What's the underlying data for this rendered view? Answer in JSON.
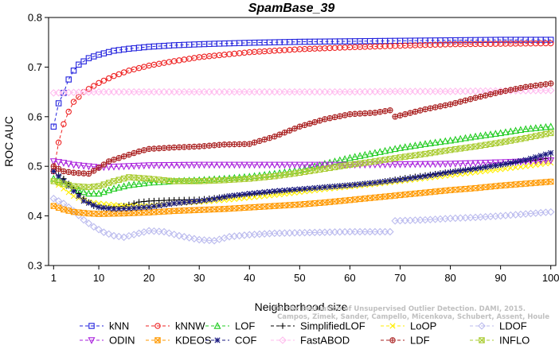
{
  "chart_data": {
    "type": "line",
    "title": "SpamBase_39",
    "xlabel": "Neighborhood size",
    "ylabel": "ROC AUC",
    "xlim": [
      0,
      101
    ],
    "ylim": [
      0.3,
      0.8
    ],
    "x_ticks": [
      1,
      10,
      20,
      30,
      40,
      50,
      60,
      70,
      80,
      90,
      100
    ],
    "y_ticks": [
      0.3,
      0.4,
      0.5,
      0.6,
      0.7,
      0.8
    ],
    "watermark": [
      "Campos, Zimek, Sander, Campello, Micenkova, Schubert, Assent, Houle",
      "On the Evaluation of Unsupervised Outlier Detection. DAMI, 2015."
    ],
    "series": [
      {
        "name": "kNN",
        "color": "#2222dd",
        "marker": "square",
        "dash": "4,3",
        "points": [
          [
            1,
            0.58
          ],
          [
            2,
            0.627
          ],
          [
            3,
            0.648
          ],
          [
            4,
            0.675
          ],
          [
            5,
            0.693
          ],
          [
            6,
            0.705
          ],
          [
            8,
            0.718
          ],
          [
            10,
            0.725
          ],
          [
            13,
            0.733
          ],
          [
            16,
            0.737
          ],
          [
            20,
            0.741
          ],
          [
            25,
            0.744
          ],
          [
            30,
            0.746
          ],
          [
            33,
            0.747
          ],
          [
            40,
            0.749
          ],
          [
            50,
            0.751
          ],
          [
            60,
            0.752
          ],
          [
            70,
            0.753
          ],
          [
            80,
            0.754
          ],
          [
            90,
            0.755
          ],
          [
            100,
            0.755
          ]
        ]
      },
      {
        "name": "kNNW",
        "color": "#ee2222",
        "marker": "circle",
        "dash": "4,3",
        "points": [
          [
            1,
            0.49
          ],
          [
            2,
            0.548
          ],
          [
            3,
            0.585
          ],
          [
            4,
            0.61
          ],
          [
            5,
            0.63
          ],
          [
            7,
            0.65
          ],
          [
            10,
            0.668
          ],
          [
            13,
            0.682
          ],
          [
            16,
            0.693
          ],
          [
            20,
            0.703
          ],
          [
            25,
            0.712
          ],
          [
            30,
            0.72
          ],
          [
            35,
            0.725
          ],
          [
            40,
            0.73
          ],
          [
            50,
            0.736
          ],
          [
            60,
            0.74
          ],
          [
            70,
            0.743
          ],
          [
            80,
            0.746
          ],
          [
            90,
            0.747
          ],
          [
            100,
            0.748
          ]
        ]
      },
      {
        "name": "LOF",
        "color": "#22cc22",
        "marker": "triangle-up",
        "dash": "4,3",
        "points": [
          [
            1,
            0.475
          ],
          [
            3,
            0.47
          ],
          [
            5,
            0.455
          ],
          [
            8,
            0.445
          ],
          [
            10,
            0.445
          ],
          [
            13,
            0.455
          ],
          [
            16,
            0.462
          ],
          [
            20,
            0.467
          ],
          [
            25,
            0.47
          ],
          [
            30,
            0.472
          ],
          [
            35,
            0.475
          ],
          [
            40,
            0.479
          ],
          [
            45,
            0.485
          ],
          [
            50,
            0.492
          ],
          [
            55,
            0.505
          ],
          [
            60,
            0.517
          ],
          [
            65,
            0.527
          ],
          [
            70,
            0.537
          ],
          [
            75,
            0.545
          ],
          [
            80,
            0.552
          ],
          [
            85,
            0.56
          ],
          [
            90,
            0.567
          ],
          [
            95,
            0.575
          ],
          [
            100,
            0.58
          ]
        ]
      },
      {
        "name": "SimplifiedLOF",
        "color": "#000000",
        "marker": "plus",
        "dash": "4,3",
        "points": [
          [
            1,
            0.49
          ],
          [
            3,
            0.475
          ],
          [
            5,
            0.455
          ],
          [
            7,
            0.435
          ],
          [
            9,
            0.42
          ],
          [
            11,
            0.415
          ],
          [
            13,
            0.418
          ],
          [
            15,
            0.42
          ],
          [
            18,
            0.428
          ],
          [
            20,
            0.43
          ],
          [
            25,
            0.432
          ],
          [
            30,
            0.433
          ],
          [
            33,
            0.436
          ],
          [
            36,
            0.44
          ],
          [
            40,
            0.443
          ],
          [
            45,
            0.448
          ],
          [
            50,
            0.452
          ],
          [
            55,
            0.458
          ],
          [
            60,
            0.462
          ],
          [
            65,
            0.467
          ],
          [
            70,
            0.475
          ],
          [
            75,
            0.482
          ],
          [
            80,
            0.489
          ],
          [
            85,
            0.496
          ],
          [
            90,
            0.503
          ],
          [
            95,
            0.51
          ],
          [
            100,
            0.517
          ]
        ]
      },
      {
        "name": "LoOP",
        "color": "#ffee00",
        "marker": "x",
        "dash": "4,3",
        "points": [
          [
            1,
            0.47
          ],
          [
            3,
            0.455
          ],
          [
            5,
            0.44
          ],
          [
            8,
            0.428
          ],
          [
            10,
            0.425
          ],
          [
            13,
            0.422
          ],
          [
            16,
            0.42
          ],
          [
            20,
            0.42
          ],
          [
            25,
            0.425
          ],
          [
            30,
            0.428
          ],
          [
            35,
            0.432
          ],
          [
            40,
            0.437
          ],
          [
            45,
            0.442
          ],
          [
            50,
            0.448
          ],
          [
            55,
            0.454
          ],
          [
            60,
            0.459
          ],
          [
            65,
            0.464
          ],
          [
            70,
            0.47
          ],
          [
            75,
            0.476
          ],
          [
            80,
            0.482
          ],
          [
            85,
            0.488
          ],
          [
            90,
            0.494
          ],
          [
            95,
            0.5
          ],
          [
            100,
            0.507
          ]
        ]
      },
      {
        "name": "LDOF",
        "color": "#bbbbee",
        "marker": "diamond",
        "dash": "4,3",
        "points": [
          [
            1,
            0.435
          ],
          [
            3,
            0.425
          ],
          [
            5,
            0.41
          ],
          [
            7,
            0.392
          ],
          [
            9,
            0.378
          ],
          [
            11,
            0.367
          ],
          [
            13,
            0.36
          ],
          [
            15,
            0.357
          ],
          [
            18,
            0.365
          ],
          [
            20,
            0.37
          ],
          [
            23,
            0.368
          ],
          [
            26,
            0.36
          ],
          [
            30,
            0.352
          ],
          [
            33,
            0.35
          ],
          [
            36,
            0.358
          ],
          [
            40,
            0.362
          ],
          [
            45,
            0.365
          ],
          [
            50,
            0.366
          ],
          [
            55,
            0.367
          ],
          [
            60,
            0.368
          ],
          [
            65,
            0.368
          ],
          [
            68,
            0.368
          ],
          [
            null,
            null
          ],
          [
            69,
            0.39
          ],
          [
            75,
            0.392
          ],
          [
            80,
            0.395
          ],
          [
            85,
            0.397
          ],
          [
            90,
            0.4
          ],
          [
            95,
            0.404
          ],
          [
            100,
            0.408
          ]
        ]
      },
      {
        "name": "ODIN",
        "color": "#aa22dd",
        "marker": "triangle-down",
        "dash": "4,3",
        "points": [
          [
            1,
            0.51
          ],
          [
            3,
            0.507
          ],
          [
            5,
            0.503
          ],
          [
            8,
            0.5
          ],
          [
            10,
            0.498
          ],
          [
            15,
            0.5
          ],
          [
            20,
            0.502
          ],
          [
            30,
            0.503
          ],
          [
            40,
            0.503
          ],
          [
            50,
            0.503
          ],
          [
            60,
            0.503
          ],
          [
            70,
            0.504
          ],
          [
            80,
            0.505
          ],
          [
            90,
            0.508
          ],
          [
            100,
            0.512
          ]
        ]
      },
      {
        "name": "KDEOS",
        "color": "#ff9900",
        "marker": "square-x",
        "dash": "4,3",
        "points": [
          [
            1,
            0.42
          ],
          [
            3,
            0.413
          ],
          [
            5,
            0.408
          ],
          [
            8,
            0.405
          ],
          [
            10,
            0.404
          ],
          [
            15,
            0.405
          ],
          [
            20,
            0.407
          ],
          [
            25,
            0.41
          ],
          [
            30,
            0.412
          ],
          [
            35,
            0.414
          ],
          [
            40,
            0.417
          ],
          [
            45,
            0.42
          ],
          [
            50,
            0.423
          ],
          [
            55,
            0.427
          ],
          [
            60,
            0.432
          ],
          [
            65,
            0.437
          ],
          [
            70,
            0.442
          ],
          [
            75,
            0.447
          ],
          [
            80,
            0.452
          ],
          [
            85,
            0.456
          ],
          [
            90,
            0.461
          ],
          [
            95,
            0.465
          ],
          [
            100,
            0.469
          ]
        ]
      },
      {
        "name": "COF",
        "color": "#1a1a80",
        "marker": "star",
        "dash": "4,3",
        "points": [
          [
            1,
            0.49
          ],
          [
            3,
            0.47
          ],
          [
            5,
            0.45
          ],
          [
            7,
            0.43
          ],
          [
            10,
            0.418
          ],
          [
            13,
            0.414
          ],
          [
            16,
            0.415
          ],
          [
            20,
            0.418
          ],
          [
            25,
            0.425
          ],
          [
            30,
            0.43
          ],
          [
            33,
            0.434
          ],
          [
            36,
            0.44
          ],
          [
            40,
            0.445
          ],
          [
            45,
            0.45
          ],
          [
            50,
            0.454
          ],
          [
            55,
            0.458
          ],
          [
            60,
            0.462
          ],
          [
            65,
            0.467
          ],
          [
            70,
            0.473
          ],
          [
            75,
            0.48
          ],
          [
            80,
            0.488
          ],
          [
            85,
            0.495
          ],
          [
            90,
            0.503
          ],
          [
            95,
            0.513
          ],
          [
            100,
            0.527
          ]
        ]
      },
      {
        "name": "FastABOD",
        "color": "#ffbbee",
        "marker": "diamond",
        "dash": "4,3",
        "points": [
          [
            1,
            0.648
          ],
          [
            5,
            0.649
          ],
          [
            10,
            0.65
          ],
          [
            20,
            0.65
          ],
          [
            30,
            0.65
          ],
          [
            40,
            0.65
          ],
          [
            50,
            0.65
          ],
          [
            60,
            0.65
          ],
          [
            70,
            0.651
          ],
          [
            80,
            0.651
          ],
          [
            90,
            0.652
          ],
          [
            100,
            0.653
          ]
        ]
      },
      {
        "name": "LDF",
        "color": "#aa2222",
        "marker": "circle-plus",
        "dash": "4,3",
        "points": [
          [
            1,
            0.5
          ],
          [
            3,
            0.49
          ],
          [
            5,
            0.487
          ],
          [
            8,
            0.485
          ],
          [
            10,
            0.497
          ],
          [
            12,
            0.51
          ],
          [
            15,
            0.52
          ],
          [
            18,
            0.53
          ],
          [
            20,
            0.535
          ],
          [
            25,
            0.538
          ],
          [
            30,
            0.54
          ],
          [
            35,
            0.544
          ],
          [
            40,
            0.545
          ],
          [
            45,
            0.56
          ],
          [
            50,
            0.58
          ],
          [
            55,
            0.595
          ],
          [
            60,
            0.605
          ],
          [
            65,
            0.608
          ],
          [
            68,
            0.613
          ],
          [
            null,
            null
          ],
          [
            69,
            0.6
          ],
          [
            75,
            0.615
          ],
          [
            80,
            0.625
          ],
          [
            85,
            0.638
          ],
          [
            90,
            0.65
          ],
          [
            95,
            0.66
          ],
          [
            100,
            0.667
          ]
        ]
      },
      {
        "name": "INFLO",
        "color": "#aacc33",
        "marker": "square-x",
        "dash": "4,3",
        "points": [
          [
            1,
            0.47
          ],
          [
            3,
            0.465
          ],
          [
            5,
            0.46
          ],
          [
            8,
            0.458
          ],
          [
            10,
            0.46
          ],
          [
            13,
            0.47
          ],
          [
            16,
            0.478
          ],
          [
            20,
            0.475
          ],
          [
            25,
            0.47
          ],
          [
            30,
            0.47
          ],
          [
            35,
            0.472
          ],
          [
            40,
            0.475
          ],
          [
            45,
            0.48
          ],
          [
            50,
            0.487
          ],
          [
            55,
            0.495
          ],
          [
            60,
            0.503
          ],
          [
            65,
            0.51
          ],
          [
            70,
            0.518
          ],
          [
            75,
            0.525
          ],
          [
            80,
            0.533
          ],
          [
            85,
            0.54
          ],
          [
            90,
            0.548
          ],
          [
            95,
            0.557
          ],
          [
            100,
            0.567
          ]
        ]
      }
    ],
    "legend_layout": [
      [
        "kNN",
        "kNNW",
        "LOF",
        "SimplifiedLOF",
        "LoOP",
        "LDOF"
      ],
      [
        "ODIN",
        "KDEOS",
        "COF",
        "FastABOD",
        "LDF",
        "INFLO"
      ]
    ]
  }
}
